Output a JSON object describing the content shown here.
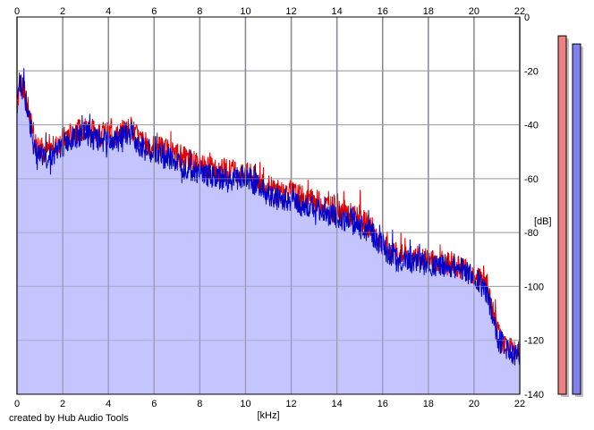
{
  "chart_data": {
    "type": "line",
    "xlabel": "[kHz]",
    "ylabel": "[dB]",
    "xlim": [
      0,
      22
    ],
    "ylim": [
      -140,
      0
    ],
    "x_ticks": [
      0,
      2,
      4,
      6,
      8,
      10,
      12,
      14,
      16,
      18,
      20,
      22
    ],
    "y_ticks": [
      0,
      -20,
      -40,
      -60,
      -80,
      -100,
      -120,
      -140
    ],
    "x_tick_labels": [
      "0",
      "2",
      "4",
      "6",
      "8",
      "10",
      "12",
      "14",
      "16",
      "18",
      "20",
      "22"
    ],
    "y_tick_labels": [
      "0",
      "-20",
      "-40",
      "-60",
      "-80",
      "-100",
      "-120",
      "-140"
    ],
    "grid": true,
    "series": [
      {
        "color": "#e00000",
        "points": [
          [
            0,
            -34
          ],
          [
            0.1,
            -24
          ],
          [
            0.25,
            -27
          ],
          [
            0.4,
            -30
          ],
          [
            0.6,
            -39
          ],
          [
            0.8,
            -47
          ],
          [
            1.0,
            -48
          ],
          [
            1.3,
            -50
          ],
          [
            1.6,
            -49
          ],
          [
            1.9,
            -46
          ],
          [
            2.2,
            -44
          ],
          [
            2.5,
            -43
          ],
          [
            2.8,
            -42
          ],
          [
            3.0,
            -41
          ],
          [
            3.3,
            -42
          ],
          [
            3.6,
            -43
          ],
          [
            4.0,
            -43
          ],
          [
            4.4,
            -44
          ],
          [
            4.7,
            -42
          ],
          [
            5.0,
            -41
          ],
          [
            5.3,
            -45
          ],
          [
            5.6,
            -47
          ],
          [
            6.0,
            -48
          ],
          [
            6.5,
            -49
          ],
          [
            7.0,
            -51
          ],
          [
            7.5,
            -53
          ],
          [
            8.0,
            -55
          ],
          [
            8.5,
            -56
          ],
          [
            9.0,
            -57
          ],
          [
            9.5,
            -57
          ],
          [
            10.0,
            -58
          ],
          [
            10.5,
            -60
          ],
          [
            11.0,
            -63
          ],
          [
            11.5,
            -65
          ],
          [
            12.0,
            -65
          ],
          [
            12.5,
            -67
          ],
          [
            13.0,
            -68
          ],
          [
            13.5,
            -70
          ],
          [
            14.0,
            -71
          ],
          [
            14.5,
            -73
          ],
          [
            15.0,
            -75
          ],
          [
            15.5,
            -78
          ],
          [
            16.0,
            -84
          ],
          [
            16.3,
            -87
          ],
          [
            16.6,
            -88
          ],
          [
            17.0,
            -89
          ],
          [
            17.5,
            -89
          ],
          [
            18.0,
            -90
          ],
          [
            18.5,
            -91
          ],
          [
            19.0,
            -92
          ],
          [
            19.5,
            -93
          ],
          [
            20.0,
            -95
          ],
          [
            20.3,
            -97
          ],
          [
            20.6,
            -101
          ],
          [
            20.8,
            -108
          ],
          [
            21.0,
            -117
          ],
          [
            21.3,
            -121
          ],
          [
            21.6,
            -123
          ],
          [
            22.0,
            -125
          ]
        ]
      },
      {
        "color": "#0000c8",
        "points": [
          [
            0,
            -31
          ],
          [
            0.1,
            -23
          ],
          [
            0.25,
            -26
          ],
          [
            0.4,
            -31
          ],
          [
            0.6,
            -42
          ],
          [
            0.8,
            -50
          ],
          [
            1.0,
            -51
          ],
          [
            1.3,
            -52
          ],
          [
            1.6,
            -51
          ],
          [
            1.9,
            -49
          ],
          [
            2.2,
            -46
          ],
          [
            2.5,
            -45
          ],
          [
            2.8,
            -44
          ],
          [
            3.0,
            -43
          ],
          [
            3.3,
            -45
          ],
          [
            3.6,
            -46
          ],
          [
            4.0,
            -46
          ],
          [
            4.4,
            -46
          ],
          [
            4.7,
            -44
          ],
          [
            5.0,
            -43
          ],
          [
            5.3,
            -47
          ],
          [
            5.6,
            -49
          ],
          [
            6.0,
            -51
          ],
          [
            6.5,
            -52
          ],
          [
            7.0,
            -54
          ],
          [
            7.5,
            -56
          ],
          [
            8.0,
            -58
          ],
          [
            8.5,
            -59
          ],
          [
            9.0,
            -60
          ],
          [
            9.5,
            -60
          ],
          [
            10.0,
            -60
          ],
          [
            10.5,
            -62
          ],
          [
            11.0,
            -66
          ],
          [
            11.5,
            -68
          ],
          [
            12.0,
            -68
          ],
          [
            12.5,
            -70
          ],
          [
            13.0,
            -71
          ],
          [
            13.5,
            -73
          ],
          [
            14.0,
            -74
          ],
          [
            14.5,
            -76
          ],
          [
            15.0,
            -78
          ],
          [
            15.5,
            -80
          ],
          [
            16.0,
            -85
          ],
          [
            16.3,
            -88
          ],
          [
            16.6,
            -90
          ],
          [
            17.0,
            -91
          ],
          [
            17.5,
            -91
          ],
          [
            18.0,
            -92
          ],
          [
            18.5,
            -92
          ],
          [
            19.0,
            -93
          ],
          [
            19.5,
            -94
          ],
          [
            20.0,
            -96
          ],
          [
            20.3,
            -99
          ],
          [
            20.6,
            -104
          ],
          [
            20.8,
            -111
          ],
          [
            21.0,
            -119
          ],
          [
            21.3,
            -122
          ],
          [
            21.6,
            -124
          ],
          [
            22.0,
            -126
          ]
        ]
      }
    ],
    "fill_color": "#c4c4ff",
    "meters": [
      {
        "color": "#f08080",
        "level_db": -7
      },
      {
        "color": "#8080f0",
        "level_db": -10
      }
    ]
  },
  "footer": {
    "credit": "created by Hub Audio Tools"
  }
}
